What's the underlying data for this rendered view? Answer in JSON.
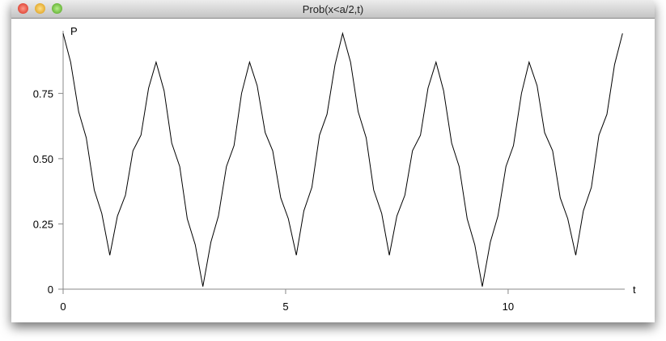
{
  "window_title": "Prob(x<a/2,t)",
  "chart_data": {
    "type": "line",
    "xlabel": "t",
    "ylabel": "P",
    "x": [
      0,
      0.17,
      0.35,
      0.52,
      0.7,
      0.87,
      1.05,
      1.22,
      1.4,
      1.57,
      1.75,
      1.92,
      2.09,
      2.27,
      2.44,
      2.62,
      2.79,
      2.97,
      3.14,
      3.32,
      3.49,
      3.67,
      3.84,
      4.01,
      4.19,
      4.36,
      4.54,
      4.71,
      4.89,
      5.06,
      5.24,
      5.41,
      5.59,
      5.76,
      5.93,
      6.11,
      6.28,
      6.46,
      6.63,
      6.81,
      6.98,
      7.16,
      7.33,
      7.5,
      7.68,
      7.85,
      8.03,
      8.2,
      8.38,
      8.55,
      8.73,
      8.9,
      9.08,
      9.25,
      9.42,
      9.6,
      9.77,
      9.95,
      10.12,
      10.3,
      10.47,
      10.65,
      10.82,
      11.0,
      11.17,
      11.34,
      11.52,
      11.69,
      11.87,
      12.04,
      12.22,
      12.39,
      12.57
    ],
    "values": [
      0.98,
      0.87,
      0.68,
      0.58,
      0.38,
      0.29,
      0.13,
      0.28,
      0.36,
      0.53,
      0.59,
      0.77,
      0.87,
      0.76,
      0.56,
      0.47,
      0.27,
      0.17,
      0.01,
      0.18,
      0.28,
      0.47,
      0.55,
      0.75,
      0.87,
      0.78,
      0.6,
      0.53,
      0.35,
      0.27,
      0.13,
      0.3,
      0.39,
      0.59,
      0.67,
      0.86,
      0.98,
      0.87,
      0.68,
      0.58,
      0.38,
      0.29,
      0.13,
      0.28,
      0.36,
      0.53,
      0.59,
      0.77,
      0.87,
      0.76,
      0.56,
      0.47,
      0.27,
      0.17,
      0.01,
      0.18,
      0.28,
      0.47,
      0.55,
      0.75,
      0.87,
      0.78,
      0.6,
      0.53,
      0.35,
      0.27,
      0.13,
      0.3,
      0.39,
      0.59,
      0.67,
      0.86,
      0.98
    ],
    "color": "#000000",
    "xlim": [
      0,
      12.62
    ],
    "xticks": [
      0,
      5,
      10
    ],
    "ylim": [
      0,
      0.99
    ],
    "yticks": [
      0,
      0.25,
      {
        "value": 0.5,
        "label": "0.50"
      },
      0.75
    ]
  }
}
